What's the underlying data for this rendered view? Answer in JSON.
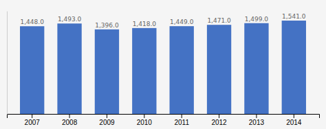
{
  "chart_data": {
    "type": "bar",
    "categories": [
      "2007",
      "2008",
      "2009",
      "2010",
      "2011",
      "2012",
      "2013",
      "2014"
    ],
    "values": [
      1448.0,
      1493.0,
      1396.0,
      1418.0,
      1449.0,
      1471.0,
      1499.0,
      1541.0
    ],
    "value_labels": [
      "1,448.0",
      "1,493.0",
      "1,396.0",
      "1,418.0",
      "1,449.0",
      "1,471.0",
      "1,499.0",
      "1,541.0"
    ],
    "data_labels": true,
    "color": "#4472c4",
    "ylim": [
      0,
      1700
    ],
    "grid": false,
    "tick_labels": "x"
  }
}
